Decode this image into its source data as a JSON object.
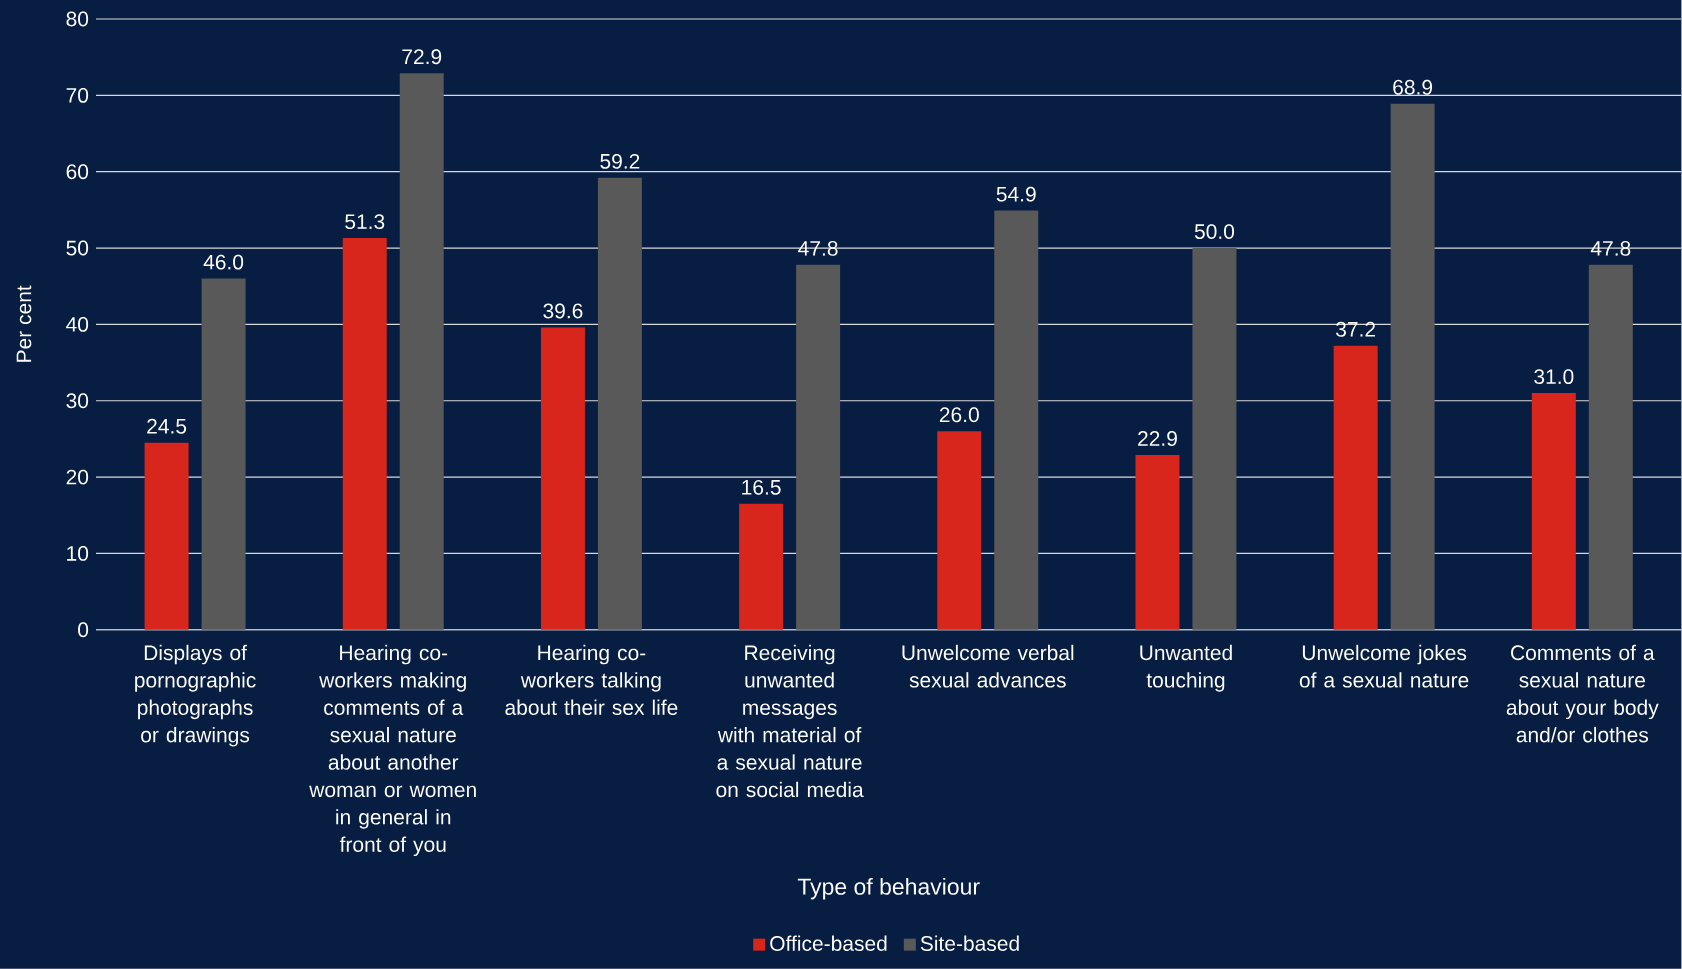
{
  "chart_data": {
    "type": "bar",
    "xlabel": "Type of behaviour",
    "ylabel": "Per cent",
    "categories": [
      "Displays of pornographic photographs or drawings",
      "Hearing co-workers making comments of a sexual nature about another woman or women in general in front of you",
      "Hearing co-workers talking about their sex life",
      "Receiving unwanted messages with material of a sexual nature on social media",
      "Unwelcome verbal sexual advances",
      "Unwanted touching",
      "Unwelcome jokes of a sexual nature",
      "Comments of a sexual nature about your body and/or clothes"
    ],
    "series": [
      {
        "name": "Office-based",
        "color": "#d9261c",
        "values": [
          24.5,
          51.3,
          39.6,
          16.5,
          26.0,
          22.9,
          37.2,
          31.0
        ],
        "value_labels": [
          "24.5",
          "51.3",
          "39.6",
          "16.5",
          "26.0",
          "22.9",
          "37.2",
          "31.0"
        ]
      },
      {
        "name": "Site-based",
        "color": "#595959",
        "values": [
          46.0,
          72.9,
          59.2,
          47.8,
          54.9,
          50.0,
          68.9,
          47.8
        ],
        "value_labels": [
          "46.0",
          "72.9",
          "59.2",
          "47.8",
          "54.9",
          "50.0",
          "68.9",
          "47.8"
        ]
      }
    ],
    "ylim": [
      0,
      80
    ],
    "yticks": [
      0,
      10,
      20,
      30,
      40,
      50,
      60,
      70,
      80
    ],
    "grid": "y",
    "legend": "bottom"
  }
}
